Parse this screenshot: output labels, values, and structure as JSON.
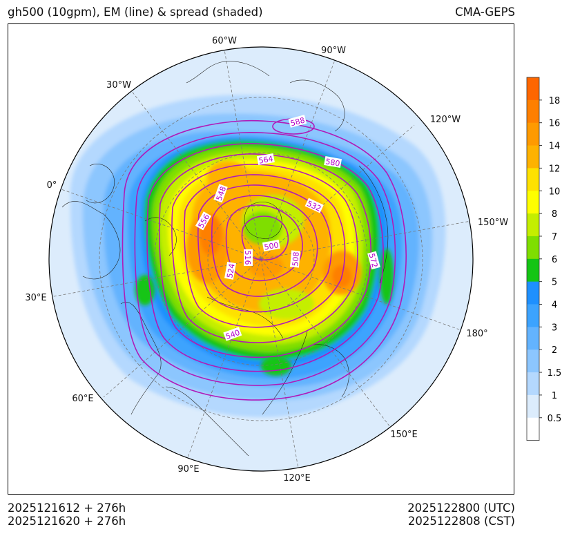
{
  "title": "gh500 (10gpm), EM (line) & spread (shaded)",
  "source": "CMA-GEPS",
  "init_utc": "2025121612 + 276h",
  "init_cst": "2025121620 + 276h",
  "valid_utc": "2025122800 (UTC)",
  "valid_cst": "2025122808 (CST)",
  "longitude_labels": [
    "60°W",
    "90°W",
    "30°W",
    "120°W",
    "0°",
    "150°W",
    "30°E",
    "180°",
    "60°E",
    "150°E",
    "90°E",
    "120°E"
  ],
  "contour_labels": [
    "588",
    "564",
    "580",
    "548",
    "556",
    "532",
    "500",
    "516",
    "524",
    "508",
    "572",
    "540"
  ],
  "colorbar": {
    "labels": [
      "18",
      "16",
      "14",
      "12",
      "10",
      "8",
      "7",
      "6",
      "5",
      "4",
      "3",
      "2",
      "1.5",
      "1",
      "0.5"
    ],
    "colors": [
      "#fe6600",
      "#fe7f00",
      "#fe9a00",
      "#feb200",
      "#fee100",
      "#fefe00",
      "#c4ee00",
      "#7fde00",
      "#14c514",
      "#1e90fe",
      "#3ca3fe",
      "#63b3fe",
      "#8cc6fe",
      "#b4d8fe",
      "#dcecfc",
      "#ffffff"
    ]
  },
  "colors": {
    "contour": "#b01ab8",
    "label": "#b400c8"
  }
}
